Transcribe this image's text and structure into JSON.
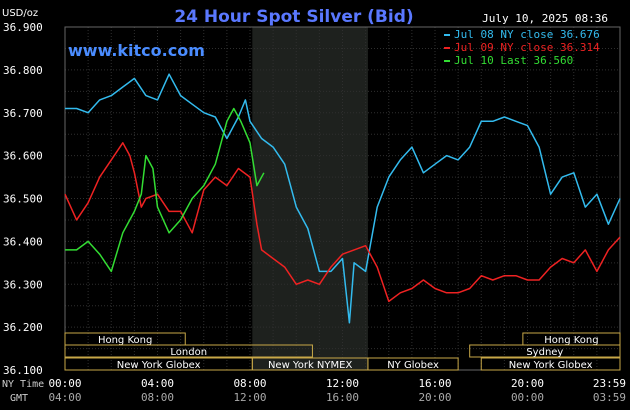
{
  "chart_data": {
    "type": "line",
    "title": "24 Hour Spot Silver (Bid)",
    "watermark": "www.kitco.com",
    "timestamp": "July 10, 2025 08:36",
    "ylabel": "USD/oz",
    "ylim": [
      36.1,
      36.9
    ],
    "y_ticks": [
      "36.900",
      "36.800",
      "36.700",
      "36.600",
      "36.500",
      "36.400",
      "36.300",
      "36.200",
      "36.100"
    ],
    "x_hours": [
      0,
      24
    ],
    "x_axis_ny_label": "NY Time",
    "x_axis_gmt_label": "GMT",
    "x_ticks_ny": [
      "00:00",
      "04:00",
      "08:00",
      "12:00",
      "16:00",
      "20:00",
      "23:59"
    ],
    "x_ticks_gmt": [
      "04:00",
      "08:00",
      "12:00",
      "16:00",
      "20:00",
      "00:00",
      "03:59"
    ],
    "grid": true,
    "legend_position": "top-right",
    "highlight_band_hours": [
      8.1,
      13.1
    ],
    "sessions": [
      {
        "label": "Hong Kong",
        "start": 0,
        "end": 5.2,
        "row": 0
      },
      {
        "label": "Hong Kong",
        "start": 19.8,
        "end": 24,
        "row": 0
      },
      {
        "label": "London",
        "start": 0,
        "end": 10.7,
        "row": 1
      },
      {
        "label": "Sydney",
        "start": 17.5,
        "end": 24,
        "row": 1
      },
      {
        "label": "New York Globex",
        "start": 0,
        "end": 8.1,
        "row": 2
      },
      {
        "label": "New York NYMEX",
        "start": 8.1,
        "end": 13.1,
        "row": 2
      },
      {
        "label": "NY Globex",
        "start": 13.1,
        "end": 17.0,
        "row": 2
      },
      {
        "label": "New York Globex",
        "start": 18.0,
        "end": 24,
        "row": 2
      }
    ],
    "series": [
      {
        "name": "Jul 08 NY close 36.676",
        "color": "#33bbee",
        "points": [
          [
            0,
            36.71
          ],
          [
            0.5,
            36.71
          ],
          [
            1,
            36.7
          ],
          [
            1.5,
            36.73
          ],
          [
            2,
            36.74
          ],
          [
            2.5,
            36.76
          ],
          [
            3,
            36.78
          ],
          [
            3.5,
            36.74
          ],
          [
            4,
            36.73
          ],
          [
            4.5,
            36.79
          ],
          [
            5,
            36.74
          ],
          [
            5.5,
            36.72
          ],
          [
            6,
            36.7
          ],
          [
            6.5,
            36.69
          ],
          [
            7,
            36.64
          ],
          [
            7.5,
            36.69
          ],
          [
            7.8,
            36.73
          ],
          [
            8,
            36.68
          ],
          [
            8.5,
            36.64
          ],
          [
            9,
            36.62
          ],
          [
            9.5,
            36.58
          ],
          [
            10,
            36.48
          ],
          [
            10.5,
            36.43
          ],
          [
            11,
            36.33
          ],
          [
            11.5,
            36.33
          ],
          [
            12,
            36.36
          ],
          [
            12.3,
            36.21
          ],
          [
            12.5,
            36.35
          ],
          [
            13,
            36.33
          ],
          [
            13.5,
            36.48
          ],
          [
            14,
            36.55
          ],
          [
            14.5,
            36.59
          ],
          [
            15,
            36.62
          ],
          [
            15.5,
            36.56
          ],
          [
            16,
            36.58
          ],
          [
            16.5,
            36.6
          ],
          [
            17,
            36.59
          ],
          [
            17.5,
            36.62
          ],
          [
            18,
            36.68
          ],
          [
            18.5,
            36.68
          ],
          [
            19,
            36.69
          ],
          [
            19.5,
            36.68
          ],
          [
            20,
            36.67
          ],
          [
            20.5,
            36.62
          ],
          [
            21,
            36.51
          ],
          [
            21.5,
            36.55
          ],
          [
            22,
            36.56
          ],
          [
            22.5,
            36.48
          ],
          [
            23,
            36.51
          ],
          [
            23.5,
            36.44
          ],
          [
            24,
            36.5
          ]
        ]
      },
      {
        "name": "Jul 09 NY close 36.314",
        "color": "#ee2222",
        "points": [
          [
            0,
            36.51
          ],
          [
            0.5,
            36.45
          ],
          [
            1,
            36.49
          ],
          [
            1.5,
            36.55
          ],
          [
            2,
            36.59
          ],
          [
            2.5,
            36.63
          ],
          [
            2.8,
            36.6
          ],
          [
            3,
            36.56
          ],
          [
            3.3,
            36.48
          ],
          [
            3.5,
            36.5
          ],
          [
            4,
            36.51
          ],
          [
            4.5,
            36.47
          ],
          [
            5,
            36.47
          ],
          [
            5.5,
            36.42
          ],
          [
            6,
            36.52
          ],
          [
            6.5,
            36.55
          ],
          [
            7,
            36.53
          ],
          [
            7.5,
            36.57
          ],
          [
            8,
            36.55
          ],
          [
            8.3,
            36.44
          ],
          [
            8.5,
            36.38
          ],
          [
            9,
            36.36
          ],
          [
            9.5,
            36.34
          ],
          [
            10,
            36.3
          ],
          [
            10.5,
            36.31
          ],
          [
            11,
            36.3
          ],
          [
            11.5,
            36.34
          ],
          [
            12,
            36.37
          ],
          [
            12.5,
            36.38
          ],
          [
            13,
            36.39
          ],
          [
            13.5,
            36.34
          ],
          [
            14,
            36.26
          ],
          [
            14.5,
            36.28
          ],
          [
            15,
            36.29
          ],
          [
            15.5,
            36.31
          ],
          [
            16,
            36.29
          ],
          [
            16.5,
            36.28
          ],
          [
            17,
            36.28
          ],
          [
            17.5,
            36.29
          ],
          [
            18,
            36.32
          ],
          [
            18.5,
            36.31
          ],
          [
            19,
            36.32
          ],
          [
            19.5,
            36.32
          ],
          [
            20,
            36.31
          ],
          [
            20.5,
            36.31
          ],
          [
            21,
            36.34
          ],
          [
            21.5,
            36.36
          ],
          [
            22,
            36.35
          ],
          [
            22.5,
            36.38
          ],
          [
            23,
            36.33
          ],
          [
            23.5,
            36.38
          ],
          [
            24,
            36.41
          ]
        ]
      },
      {
        "name": "Jul 10 Last 36.560",
        "color": "#33dd33",
        "points": [
          [
            0,
            36.38
          ],
          [
            0.5,
            36.38
          ],
          [
            1,
            36.4
          ],
          [
            1.5,
            36.37
          ],
          [
            2,
            36.33
          ],
          [
            2.5,
            36.42
          ],
          [
            3,
            36.47
          ],
          [
            3.3,
            36.51
          ],
          [
            3.5,
            36.6
          ],
          [
            3.8,
            36.57
          ],
          [
            4,
            36.48
          ],
          [
            4.5,
            36.42
          ],
          [
            5,
            36.45
          ],
          [
            5.5,
            36.5
          ],
          [
            6,
            36.53
          ],
          [
            6.5,
            36.58
          ],
          [
            7,
            36.68
          ],
          [
            7.3,
            36.71
          ],
          [
            7.6,
            36.68
          ],
          [
            8,
            36.63
          ],
          [
            8.3,
            36.53
          ],
          [
            8.6,
            36.56
          ]
        ]
      }
    ]
  }
}
